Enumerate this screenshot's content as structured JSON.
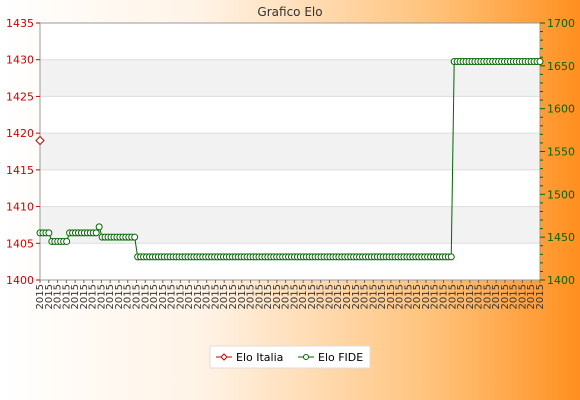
{
  "chart_data": {
    "type": "line",
    "title": "Grafico Elo",
    "x_tick_label": "2015",
    "x_tick_count": 58,
    "y_left": {
      "ticks": [
        1400,
        1405,
        1410,
        1415,
        1420,
        1425,
        1430,
        1435
      ],
      "range": [
        1400,
        1435
      ],
      "color": "#cc0000"
    },
    "y_right": {
      "ticks": [
        1400,
        1450,
        1500,
        1550,
        1600,
        1650,
        1700
      ],
      "range": [
        1400,
        1700
      ],
      "color": "#006600"
    },
    "grid": true,
    "legend_position": "bottom",
    "series": [
      {
        "name": "Elo Italia",
        "axis": "left",
        "color": "#cc0000",
        "values": [
          1419
        ]
      },
      {
        "name": "Elo FIDE",
        "axis": "right",
        "color": "#006600",
        "values": [
          1455,
          1455,
          1455,
          1455,
          1445,
          1445,
          1445,
          1445,
          1445,
          1445,
          1455,
          1455,
          1455,
          1455,
          1455,
          1455,
          1455,
          1455,
          1455,
          1455,
          1462,
          1450,
          1450,
          1450,
          1450,
          1450,
          1450,
          1450,
          1450,
          1450,
          1450,
          1450,
          1450,
          1427,
          1427,
          1427,
          1427,
          1427,
          1427,
          1427,
          1427,
          1427,
          1427,
          1427,
          1427,
          1427,
          1427,
          1427,
          1427,
          1427,
          1427,
          1427,
          1427,
          1427,
          1427,
          1427,
          1427,
          1427,
          1427,
          1427,
          1427,
          1427,
          1427,
          1427,
          1427,
          1427,
          1427,
          1427,
          1427,
          1427,
          1427,
          1427,
          1427,
          1427,
          1427,
          1427,
          1427,
          1427,
          1427,
          1427,
          1427,
          1427,
          1427,
          1427,
          1427,
          1427,
          1427,
          1427,
          1427,
          1427,
          1427,
          1427,
          1427,
          1427,
          1427,
          1427,
          1427,
          1427,
          1427,
          1427,
          1427,
          1427,
          1427,
          1427,
          1427,
          1427,
          1427,
          1427,
          1427,
          1427,
          1427,
          1427,
          1427,
          1427,
          1427,
          1427,
          1427,
          1427,
          1427,
          1427,
          1427,
          1427,
          1427,
          1427,
          1427,
          1427,
          1427,
          1427,
          1427,
          1427,
          1427,
          1427,
          1427,
          1427,
          1427,
          1427,
          1427,
          1427,
          1427,
          1427,
          1655,
          1655,
          1655,
          1655,
          1655,
          1655,
          1655,
          1655,
          1655,
          1655,
          1655,
          1655,
          1655,
          1655,
          1655,
          1655,
          1655,
          1655,
          1655,
          1655,
          1655,
          1655,
          1655,
          1655,
          1655,
          1655,
          1655,
          1655,
          1655,
          1655
        ]
      }
    ]
  }
}
